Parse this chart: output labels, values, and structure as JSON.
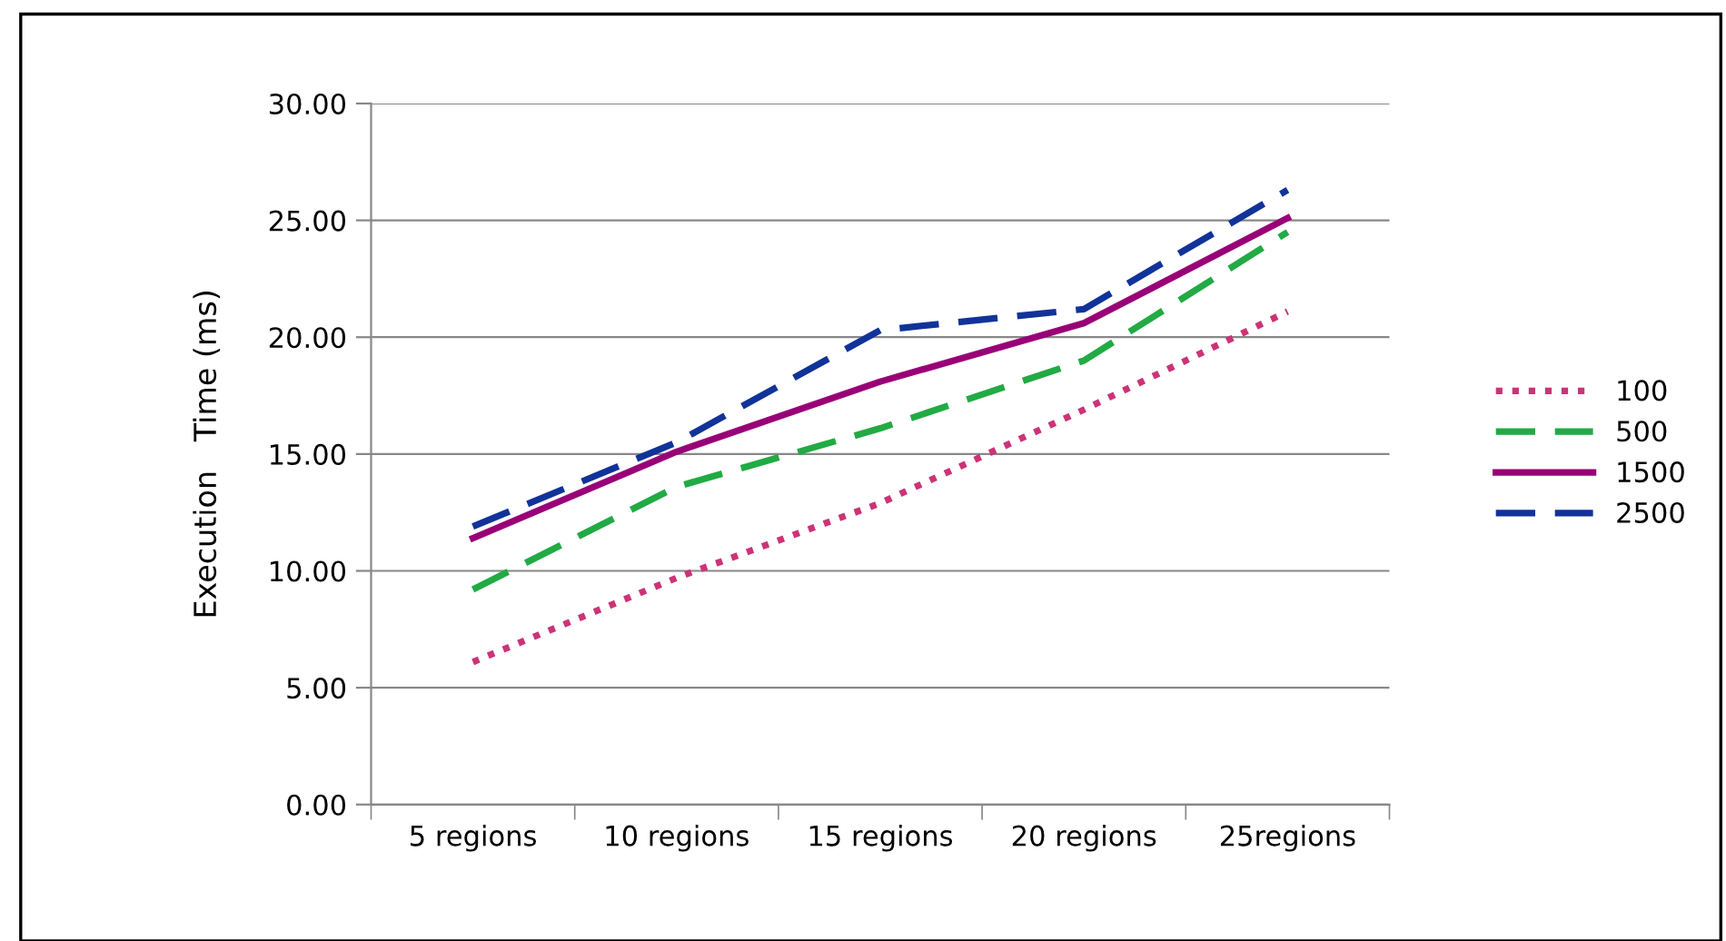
{
  "chart_data": {
    "type": "line",
    "ylabel": "Execution   Time (ms)",
    "categories": [
      "5 regions",
      "10 regions",
      "15 regions",
      "20 regions",
      "25regions"
    ],
    "series": [
      {
        "name": "100",
        "color": "#cc3377",
        "line_style": "dotted",
        "values": [
          6.1,
          9.7,
          12.9,
          16.9,
          21.1
        ]
      },
      {
        "name": "500",
        "color": "#22aa44",
        "line_style": "dashed",
        "values": [
          9.2,
          13.6,
          16.1,
          19.0,
          24.5
        ]
      },
      {
        "name": "1500",
        "color": "#990077",
        "line_style": "solid",
        "values": [
          11.4,
          15.1,
          18.1,
          20.6,
          25.1
        ]
      },
      {
        "name": "2500",
        "color": "#113399",
        "line_style": "dashed",
        "values": [
          11.9,
          15.5,
          20.3,
          21.2,
          26.3
        ]
      }
    ],
    "ylim": [
      0,
      30
    ],
    "yticks": [
      {
        "value": 0,
        "label": "0.00"
      },
      {
        "value": 5,
        "label": "5.00"
      },
      {
        "value": 10,
        "label": "10.00"
      },
      {
        "value": 15,
        "label": "15.00"
      },
      {
        "value": 20,
        "label": "20.00"
      },
      {
        "value": 25,
        "label": "25.00"
      },
      {
        "value": 30,
        "label": "30.00"
      }
    ],
    "grid": "y",
    "legend": "right",
    "marker": "none"
  }
}
